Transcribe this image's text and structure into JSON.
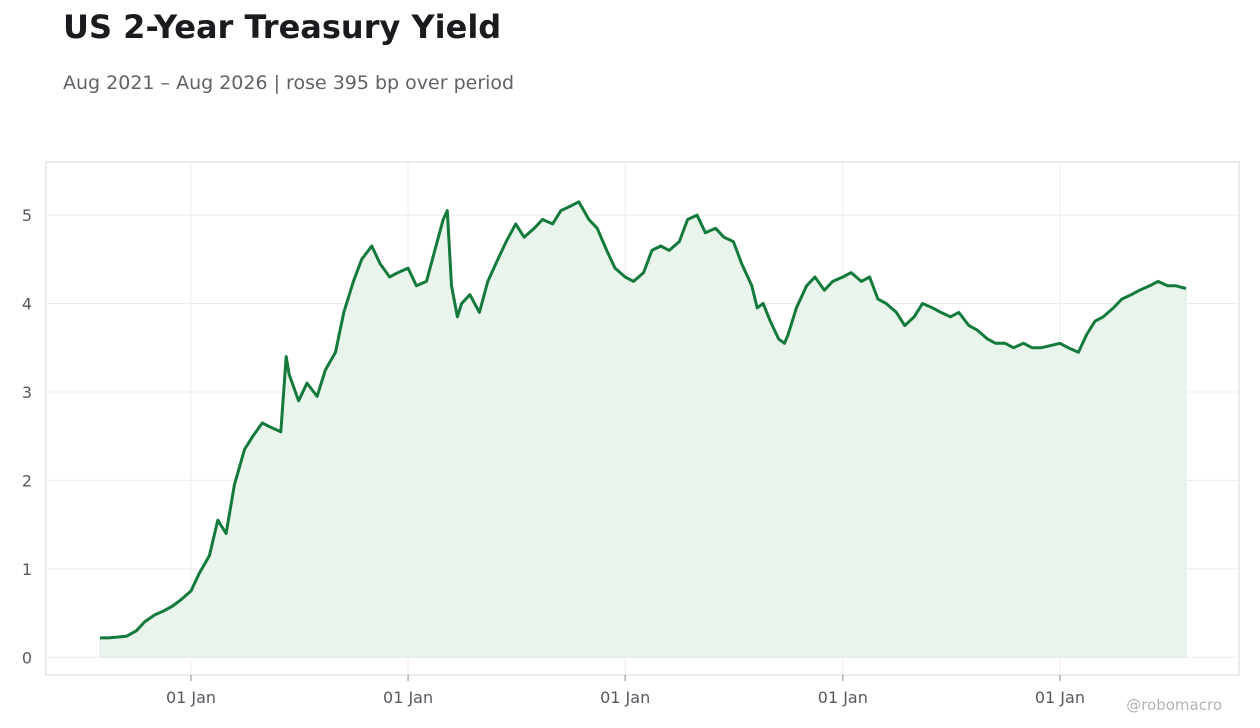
{
  "header": {
    "title": "US 2-Year Treasury Yield",
    "subtitle": "Aug 2021 – Aug 2026 | rose 395 bp over period"
  },
  "watermark": "@robomacro",
  "colors": {
    "line": "#147a3c",
    "fill": "#e9f4ec",
    "grid": "#ececec",
    "axis_text": "#555a60"
  },
  "chart_data": {
    "type": "area",
    "title": "US 2-Year Treasury Yield",
    "subtitle": "Aug 2021 – Aug 2026 | rose 395 bp over period",
    "xlabel": "",
    "ylabel": "",
    "x_range": [
      "2021-08-01",
      "2026-08-01"
    ],
    "ylim": [
      -0.2,
      5.6
    ],
    "y_ticks": [
      0,
      1,
      2,
      3,
      4,
      5
    ],
    "x_ticks": [
      {
        "date": "2022-01-01",
        "label": "01 Jan"
      },
      {
        "date": "2023-01-01",
        "label": "01 Jan"
      },
      {
        "date": "2024-01-01",
        "label": "01 Jan"
      },
      {
        "date": "2025-01-01",
        "label": "01 Jan"
      },
      {
        "date": "2026-01-01",
        "label": "01 Jan"
      }
    ],
    "grid": true,
    "legend": "none",
    "series": [
      {
        "points": [
          [
            "2021-08-01",
            0.22
          ],
          [
            "2021-08-15",
            0.22
          ],
          [
            "2021-09-01",
            0.23
          ],
          [
            "2021-09-15",
            0.24
          ],
          [
            "2021-10-01",
            0.3
          ],
          [
            "2021-10-15",
            0.4
          ],
          [
            "2021-11-01",
            0.48
          ],
          [
            "2021-11-15",
            0.52
          ],
          [
            "2021-12-01",
            0.58
          ],
          [
            "2021-12-15",
            0.65
          ],
          [
            "2022-01-01",
            0.75
          ],
          [
            "2022-01-15",
            0.95
          ],
          [
            "2022-02-01",
            1.15
          ],
          [
            "2022-02-15",
            1.55
          ],
          [
            "2022-03-01",
            1.4
          ],
          [
            "2022-03-15",
            1.95
          ],
          [
            "2022-04-01",
            2.35
          ],
          [
            "2022-04-15",
            2.5
          ],
          [
            "2022-05-01",
            2.65
          ],
          [
            "2022-05-15",
            2.6
          ],
          [
            "2022-06-01",
            2.55
          ],
          [
            "2022-06-10",
            3.4
          ],
          [
            "2022-06-15",
            3.2
          ],
          [
            "2022-07-01",
            2.9
          ],
          [
            "2022-07-15",
            3.1
          ],
          [
            "2022-08-01",
            2.95
          ],
          [
            "2022-08-15",
            3.25
          ],
          [
            "2022-09-01",
            3.45
          ],
          [
            "2022-09-15",
            3.9
          ],
          [
            "2022-10-01",
            4.25
          ],
          [
            "2022-10-15",
            4.5
          ],
          [
            "2022-11-01",
            4.65
          ],
          [
            "2022-11-15",
            4.45
          ],
          [
            "2022-12-01",
            4.3
          ],
          [
            "2022-12-15",
            4.35
          ],
          [
            "2023-01-01",
            4.4
          ],
          [
            "2023-01-15",
            4.2
          ],
          [
            "2023-02-01",
            4.25
          ],
          [
            "2023-02-15",
            4.6
          ],
          [
            "2023-03-01",
            4.95
          ],
          [
            "2023-03-08",
            5.05
          ],
          [
            "2023-03-15",
            4.2
          ],
          [
            "2023-03-25",
            3.85
          ],
          [
            "2023-04-01",
            4.0
          ],
          [
            "2023-04-15",
            4.1
          ],
          [
            "2023-05-01",
            3.9
          ],
          [
            "2023-05-15",
            4.25
          ],
          [
            "2023-06-01",
            4.5
          ],
          [
            "2023-06-15",
            4.7
          ],
          [
            "2023-07-01",
            4.9
          ],
          [
            "2023-07-15",
            4.75
          ],
          [
            "2023-08-01",
            4.85
          ],
          [
            "2023-08-15",
            4.95
          ],
          [
            "2023-09-01",
            4.9
          ],
          [
            "2023-09-15",
            5.05
          ],
          [
            "2023-10-01",
            5.1
          ],
          [
            "2023-10-15",
            5.15
          ],
          [
            "2023-11-01",
            4.95
          ],
          [
            "2023-11-15",
            4.85
          ],
          [
            "2023-12-01",
            4.6
          ],
          [
            "2023-12-15",
            4.4
          ],
          [
            "2024-01-01",
            4.3
          ],
          [
            "2024-01-15",
            4.25
          ],
          [
            "2024-02-01",
            4.35
          ],
          [
            "2024-02-15",
            4.6
          ],
          [
            "2024-03-01",
            4.65
          ],
          [
            "2024-03-15",
            4.6
          ],
          [
            "2024-04-01",
            4.7
          ],
          [
            "2024-04-15",
            4.95
          ],
          [
            "2024-05-01",
            5.0
          ],
          [
            "2024-05-15",
            4.8
          ],
          [
            "2024-06-01",
            4.85
          ],
          [
            "2024-06-15",
            4.75
          ],
          [
            "2024-07-01",
            4.7
          ],
          [
            "2024-07-15",
            4.45
          ],
          [
            "2024-08-01",
            4.2
          ],
          [
            "2024-08-10",
            3.95
          ],
          [
            "2024-08-20",
            4.0
          ],
          [
            "2024-09-01",
            3.8
          ],
          [
            "2024-09-15",
            3.6
          ],
          [
            "2024-09-25",
            3.55
          ],
          [
            "2024-10-01",
            3.65
          ],
          [
            "2024-10-15",
            3.95
          ],
          [
            "2024-11-01",
            4.2
          ],
          [
            "2024-11-15",
            4.3
          ],
          [
            "2024-12-01",
            4.15
          ],
          [
            "2024-12-15",
            4.25
          ],
          [
            "2025-01-01",
            4.3
          ],
          [
            "2025-01-15",
            4.35
          ],
          [
            "2025-02-01",
            4.25
          ],
          [
            "2025-02-15",
            4.3
          ],
          [
            "2025-03-01",
            4.05
          ],
          [
            "2025-03-15",
            4.0
          ],
          [
            "2025-04-01",
            3.9
          ],
          [
            "2025-04-15",
            3.75
          ],
          [
            "2025-05-01",
            3.85
          ],
          [
            "2025-05-15",
            4.0
          ],
          [
            "2025-06-01",
            3.95
          ],
          [
            "2025-06-15",
            3.9
          ],
          [
            "2025-07-01",
            3.85
          ],
          [
            "2025-07-15",
            3.9
          ],
          [
            "2025-08-01",
            3.75
          ],
          [
            "2025-08-15",
            3.7
          ],
          [
            "2025-09-01",
            3.6
          ],
          [
            "2025-09-15",
            3.55
          ],
          [
            "2025-10-01",
            3.55
          ],
          [
            "2025-10-15",
            3.5
          ],
          [
            "2025-11-01",
            3.55
          ],
          [
            "2025-11-15",
            3.5
          ],
          [
            "2025-12-01",
            3.5
          ],
          [
            "2026-01-01",
            3.55
          ],
          [
            "2026-01-15",
            3.5
          ],
          [
            "2026-02-01",
            3.45
          ],
          [
            "2026-02-15",
            3.65
          ],
          [
            "2026-03-01",
            3.8
          ],
          [
            "2026-03-15",
            3.85
          ],
          [
            "2026-04-01",
            3.95
          ],
          [
            "2026-04-15",
            4.05
          ],
          [
            "2026-05-01",
            4.1
          ],
          [
            "2026-05-15",
            4.15
          ],
          [
            "2026-06-01",
            4.2
          ],
          [
            "2026-06-15",
            4.25
          ],
          [
            "2026-07-01",
            4.2
          ],
          [
            "2026-07-15",
            4.2
          ],
          [
            "2026-08-01",
            4.17
          ]
        ]
      }
    ]
  }
}
